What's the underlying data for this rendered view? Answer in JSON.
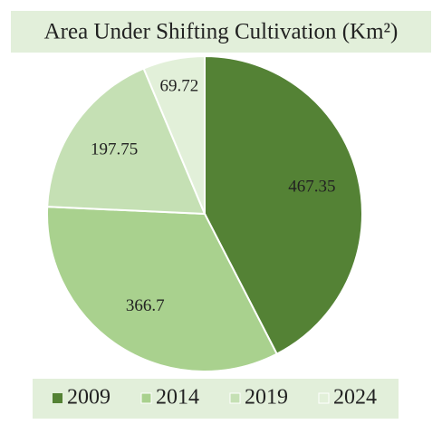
{
  "chart_data": {
    "type": "pie",
    "title": "Area Under Shifting Cultivation (Km²)",
    "categories": [
      "2009",
      "2014",
      "2019",
      "2024"
    ],
    "values": [
      467.35,
      366.7,
      197.75,
      69.72
    ],
    "colors": [
      "#548235",
      "#a9d18e",
      "#c5e0b4",
      "#e2f0d9"
    ],
    "legend": "bottom"
  }
}
